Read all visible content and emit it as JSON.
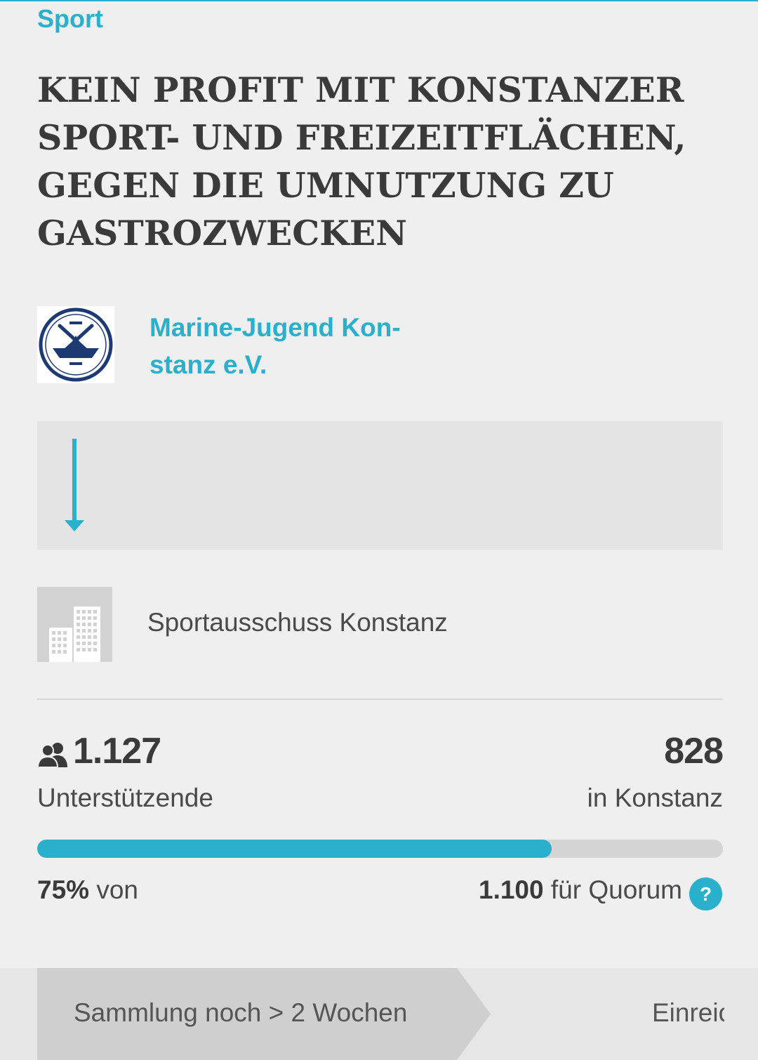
{
  "colors": {
    "accent": "#2aafcc",
    "background": "#efefef",
    "text": "#3a3a3a"
  },
  "category": "Sport",
  "headline": "KEIN PROFIT MIT KONSTANZER SPORT- UND FREIZEITFLÄCHEN, GEGEN DIE UMNUTZUNG ZU GASTROZWECKEN",
  "initiator": {
    "name": "Marine-Jugend Kon-stanz e.V.",
    "logo_icon": "rowing-club-logo"
  },
  "flow": {
    "icon": "arrow-down-icon"
  },
  "recipient": {
    "name": "Sportausschuss Konstanz",
    "icon": "building-icon"
  },
  "stats": {
    "supporters_icon": "people-icon",
    "supporters_count": "1.127",
    "supporters_label": "Unterstützende",
    "local_count": "828",
    "local_label": "in Konstanz"
  },
  "progress": {
    "percent_label": "75%",
    "percent_value": 75,
    "of_label": "von",
    "quorum_value": "1.100",
    "quorum_label": "für Quorum",
    "help_label": "?"
  },
  "steps": {
    "active_label": "Sammlung noch > 2 Wochen",
    "next_label": "Einreic"
  }
}
